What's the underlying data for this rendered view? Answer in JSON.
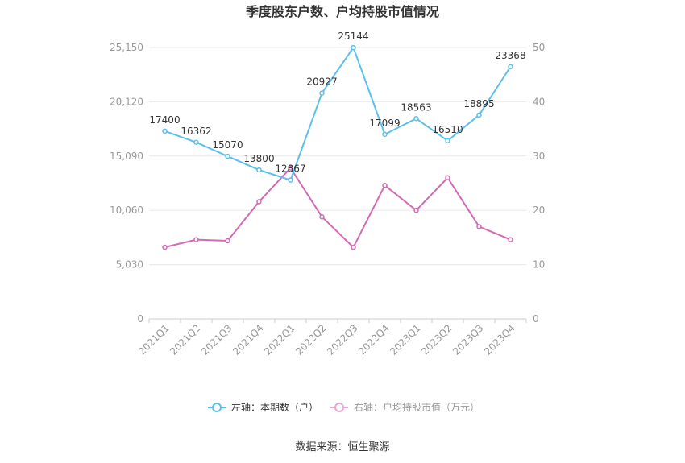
{
  "chart_data": {
    "type": "line",
    "title": "季度股东户数、户均持股市值情况",
    "categories": [
      "2021Q1",
      "2021Q2",
      "2021Q3",
      "2021Q4",
      "2022Q1",
      "2022Q2",
      "2022Q3",
      "2022Q4",
      "2023Q1",
      "2023Q2",
      "2023Q3",
      "2023Q4"
    ],
    "left_axis": {
      "min": 0,
      "max": 25150,
      "ticks": [
        "0",
        "5,030",
        "10,060",
        "15,090",
        "20,120",
        "25,150"
      ]
    },
    "right_axis": {
      "min": 0,
      "max": 50,
      "ticks": [
        "0",
        "10",
        "20",
        "30",
        "40",
        "50"
      ]
    },
    "series": [
      {
        "name": "左轴：本期数（户）",
        "axis": "left",
        "color": "#5bc0eb",
        "values": [
          17400,
          16362,
          15070,
          13800,
          12867,
          20927,
          25144,
          17099,
          18563,
          16510,
          18895,
          23368
        ],
        "labels": [
          "17400",
          "16362",
          "15070",
          "13800",
          "12867",
          "20927",
          "25144",
          "17099",
          "18563",
          "16510",
          "18895",
          "23368"
        ]
      },
      {
        "name": "右轴：户均持股市值（万元）",
        "axis": "right",
        "color": "#d36ab3",
        "values": [
          13.2,
          14.6,
          14.4,
          21.6,
          27.8,
          18.8,
          13.2,
          24.6,
          20.0,
          26.0,
          17.0,
          14.6
        ]
      }
    ],
    "grid": true,
    "legend": "bottom"
  },
  "source": "数据来源：恒生聚源"
}
